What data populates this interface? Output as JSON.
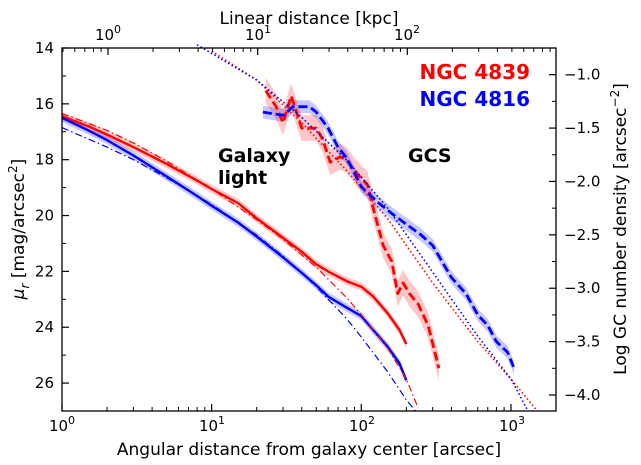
{
  "chart_data": {
    "type": "line",
    "xscale": "log",
    "xlim": [
      1,
      2000
    ],
    "ylim_left": [
      27,
      14
    ],
    "ylim_right": [
      -4.15,
      -0.75
    ],
    "xlabel": "Angular distance from galaxy center [arcsec]",
    "ylabel_left": "μ_r [mag/arcsec^2]",
    "ylabel_right": "Log GC number density [arcsec^-2]",
    "top_xlabel": "Linear distance [kpc]",
    "x_ticks": [
      "10^0",
      "10^1",
      "10^2",
      "10^3"
    ],
    "top_x_ticks": [
      "10^0",
      "10^1",
      "10^2"
    ],
    "y_left_ticks": [
      "14",
      "16",
      "18",
      "20",
      "22",
      "24",
      "26"
    ],
    "y_right_ticks": [
      "−1.0",
      "−1.5",
      "−2.0",
      "−2.5",
      "−3.0",
      "−3.5",
      "−4.0"
    ],
    "annotations": {
      "galaxy_light_1": "Galaxy",
      "galaxy_light_2": "light",
      "gcs": "GCS"
    },
    "legend": [
      {
        "name": "NGC 4839",
        "color": "#ff0000"
      },
      {
        "name": "NGC 4816",
        "color": "#0000ff"
      }
    ],
    "series": [
      {
        "name": "NGC 4839 galaxy light",
        "axis": "left",
        "color": "#ff0000",
        "style": "solid",
        "band": 0.15,
        "x": [
          1,
          1.5,
          2,
          3,
          5,
          8,
          10,
          15,
          20,
          30,
          40,
          50,
          60,
          80,
          100,
          120,
          150,
          180,
          200
        ],
        "y": [
          16.45,
          16.8,
          17.1,
          17.55,
          18.15,
          18.75,
          19.05,
          19.55,
          20.1,
          20.8,
          21.3,
          21.75,
          22.0,
          22.35,
          22.55,
          22.9,
          23.5,
          24.1,
          24.6
        ]
      },
      {
        "name": "NGC 4816 galaxy light",
        "axis": "left",
        "color": "#0000ff",
        "style": "solid",
        "band": 0.15,
        "x": [
          1,
          1.5,
          2,
          3,
          5,
          8,
          10,
          15,
          20,
          30,
          40,
          50,
          60,
          80,
          100,
          120,
          150,
          180,
          200
        ],
        "y": [
          16.5,
          16.95,
          17.3,
          17.85,
          18.6,
          19.3,
          19.65,
          20.25,
          20.75,
          21.5,
          22.05,
          22.5,
          22.9,
          23.3,
          23.6,
          24.1,
          24.7,
          25.3,
          25.9
        ]
      },
      {
        "name": "NGC 4839 galaxy light model",
        "axis": "left",
        "color": "#ff0000",
        "style": "dashdot",
        "x": [
          1,
          2,
          3,
          5,
          10,
          20,
          30,
          50,
          80,
          100,
          150,
          200,
          240
        ],
        "y": [
          16.35,
          16.95,
          17.4,
          18.05,
          19.05,
          20.15,
          20.85,
          21.85,
          22.95,
          23.55,
          24.75,
          25.85,
          26.9
        ]
      },
      {
        "name": "NGC 4816 galaxy light model",
        "axis": "left",
        "color": "#0000ff",
        "style": "dashdot",
        "x": [
          1,
          2,
          3,
          5,
          10,
          20,
          30,
          50,
          80,
          100,
          150,
          200,
          230
        ],
        "y": [
          16.85,
          17.55,
          18.0,
          18.65,
          19.6,
          20.7,
          21.45,
          22.55,
          23.7,
          24.35,
          25.6,
          26.6,
          27.0
        ]
      },
      {
        "name": "NGC 4839 GCS",
        "axis": "right",
        "color": "#ff0000",
        "style": "dashed",
        "band": 0.12,
        "x": [
          23,
          27,
          30,
          34,
          40,
          50,
          55,
          62,
          72,
          80,
          90,
          100,
          110,
          120,
          140,
          160,
          175,
          190,
          210,
          240,
          280,
          330
        ],
        "y": [
          -1.15,
          -1.3,
          -1.45,
          -1.2,
          -1.5,
          -1.5,
          -1.6,
          -1.82,
          -1.77,
          -1.8,
          -1.9,
          -1.97,
          -2.03,
          -2.25,
          -2.6,
          -2.75,
          -3.05,
          -2.95,
          -3.05,
          -3.15,
          -3.35,
          -3.75
        ]
      },
      {
        "name": "NGC 4816 GCS",
        "axis": "right",
        "color": "#0000ff",
        "style": "dashed",
        "band": 0.06,
        "x": [
          22,
          30,
          35,
          40,
          45,
          50,
          60,
          70,
          80,
          100,
          130,
          160,
          200,
          250,
          300,
          400,
          500,
          600,
          700,
          800,
          950,
          1050
        ],
        "y": [
          -1.35,
          -1.38,
          -1.3,
          -1.3,
          -1.3,
          -1.35,
          -1.5,
          -1.68,
          -1.78,
          -2.05,
          -2.2,
          -2.3,
          -2.4,
          -2.5,
          -2.6,
          -2.9,
          -3.05,
          -3.25,
          -3.35,
          -3.5,
          -3.6,
          -3.75
        ]
      },
      {
        "name": "NGC 4839 GCS model",
        "axis": "right",
        "color": "#ff0000",
        "style": "dotted",
        "x": [
          10,
          20,
          40,
          80,
          150,
          300,
          600,
          1000,
          1500
        ],
        "y": [
          -0.78,
          -1.05,
          -1.45,
          -1.9,
          -2.35,
          -2.95,
          -3.5,
          -3.85,
          -4.15
        ]
      },
      {
        "name": "NGC 4816 GCS model",
        "axis": "right",
        "color": "#0000ff",
        "style": "dotted",
        "x": [
          8,
          20,
          40,
          80,
          150,
          300,
          600,
          1000,
          1300
        ],
        "y": [
          -0.72,
          -1.05,
          -1.4,
          -1.8,
          -2.25,
          -2.85,
          -3.45,
          -3.85,
          -4.15
        ]
      }
    ]
  }
}
